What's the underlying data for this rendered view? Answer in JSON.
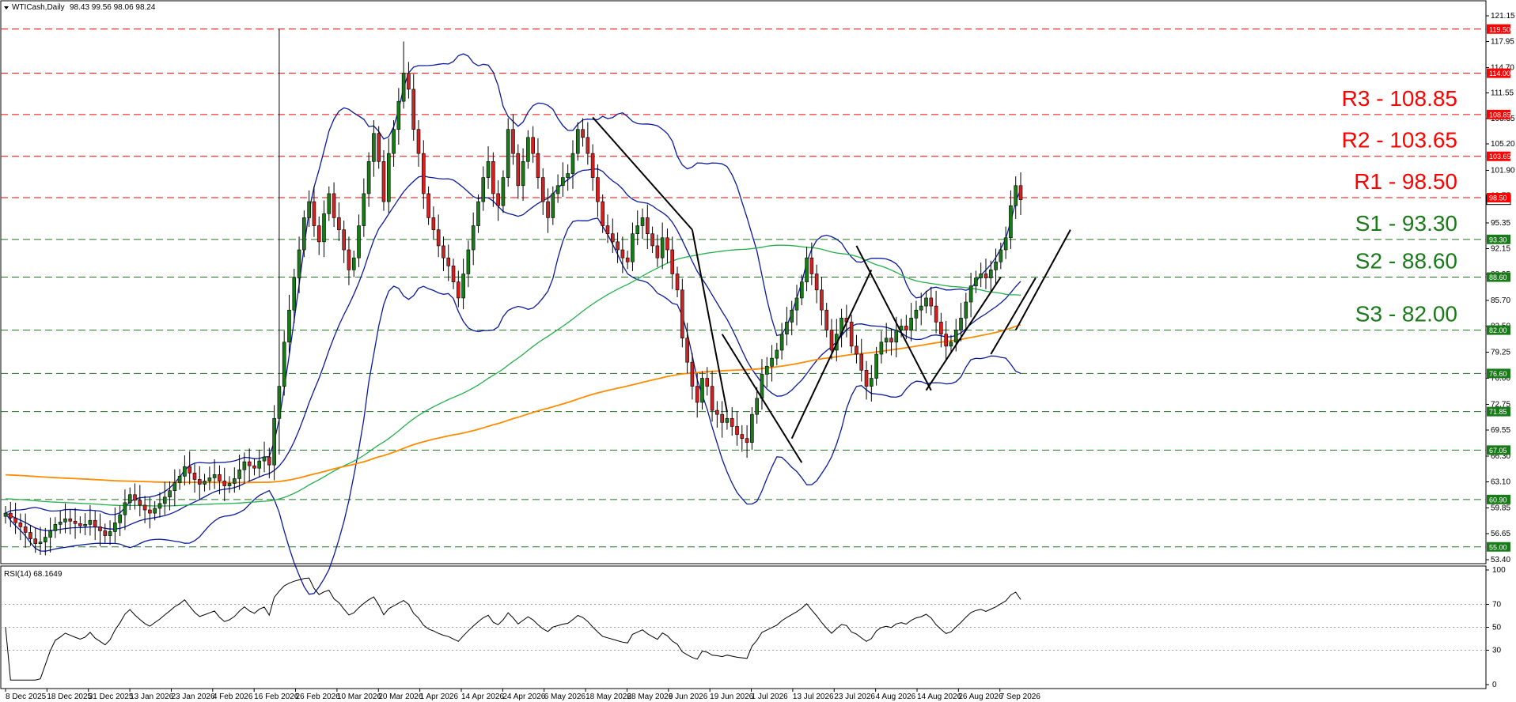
{
  "chart_data": {
    "type": "candlestick",
    "title": "WTICash,Daily",
    "ohlc_readout": "98.43 99.56 98.06 98.24",
    "y_ticks": [
      121.15,
      117.95,
      114.7,
      111.55,
      108.35,
      105.2,
      101.9,
      98.75,
      95.35,
      92.15,
      88.95,
      85.7,
      82.5,
      79.25,
      76.0,
      72.75,
      69.55,
      66.3,
      63.1,
      59.85,
      56.65,
      53.4
    ],
    "x_ticks": [
      "8 Dec 2025",
      "18 Dec 2025",
      "31 Dec 2025",
      "13 Jan 2026",
      "23 Jan 2026",
      "4 Feb 2026",
      "16 Feb 2026",
      "26 Feb 2026",
      "10 Mar 2026",
      "20 Mar 2026",
      "1 Apr 2026",
      "14 Apr 2026",
      "24 Apr 2026",
      "6 May 2026",
      "18 May 2026",
      "28 May 2026",
      "9 Jun 2026",
      "19 Jun 2026",
      "1 Jul 2026",
      "13 Jul 2026",
      "23 Jul 2026",
      "4 Aug 2026",
      "14 Aug 2026",
      "26 Aug 2026",
      "7 Sep 2026"
    ],
    "levels": [
      {
        "value": 119.5,
        "label": "119.50",
        "color": "#ff0000"
      },
      {
        "value": 114.0,
        "label": "114.00",
        "color": "#ff0000"
      },
      {
        "value": 108.85,
        "label": "108.85",
        "color": "#ff0000",
        "name": "R3 - 108.85"
      },
      {
        "value": 103.65,
        "label": "103.65",
        "color": "#ff0000",
        "name": "R2 - 103.65"
      },
      {
        "value": 98.5,
        "label": "98.50",
        "color": "#ff0000",
        "name": "R1 - 98.50"
      },
      {
        "value": 93.3,
        "label": "93.30",
        "color": "#1a7a1a",
        "name": "S1 - 93.30"
      },
      {
        "value": 88.6,
        "label": "88.60",
        "color": "#1a7a1a",
        "name": "S2 - 88.60"
      },
      {
        "value": 82.0,
        "label": "82.00",
        "color": "#1a7a1a",
        "name": "S3 - 82.00"
      },
      {
        "value": 76.6,
        "label": "76.60",
        "color": "#1a7a1a"
      },
      {
        "value": 71.85,
        "label": "71.85",
        "color": "#1a7a1a"
      },
      {
        "value": 67.05,
        "label": "67.05",
        "color": "#1a7a1a"
      },
      {
        "value": 60.9,
        "label": "60.90",
        "color": "#1a7a1a"
      },
      {
        "value": 55.0,
        "label": "55.00",
        "color": "#1a7a1a"
      }
    ],
    "current_price": 98.24,
    "closes": [
      59.2,
      58.6,
      58.0,
      57.5,
      56.8,
      56.0,
      55.4,
      55.6,
      56.2,
      57.0,
      57.8,
      58.1,
      58.5,
      58.2,
      57.9,
      57.6,
      57.8,
      58.3,
      57.5,
      57.0,
      56.4,
      56.9,
      58.0,
      59.0,
      60.5,
      61.5,
      60.8,
      60.2,
      59.6,
      59.2,
      59.8,
      60.4,
      61.2,
      62.0,
      63.0,
      63.8,
      65.0,
      64.2,
      63.4,
      62.8,
      63.2,
      63.6,
      64.0,
      63.2,
      62.6,
      62.9,
      63.5,
      64.6,
      65.6,
      65.1,
      64.8,
      65.7,
      66.2,
      65.2,
      71.0,
      75.0,
      80.5,
      84.5,
      88.5,
      92.0,
      96.0,
      98.0,
      95.0,
      93.0,
      96.5,
      99.0,
      96.0,
      94.5,
      92.0,
      89.5,
      91.0,
      95.0,
      99.0,
      103.0,
      106.5,
      103.0,
      98.0,
      104.0,
      107.0,
      110.5,
      114.0,
      112.0,
      107.0,
      104.0,
      99.0,
      96.0,
      94.5,
      92.5,
      91.0,
      90.0,
      88.0,
      86.0,
      89.0,
      92.0,
      95.0,
      98.0,
      101.0,
      103.0,
      99.0,
      97.5,
      101.0,
      107.0,
      104.0,
      100.0,
      103.0,
      106.0,
      104.0,
      101.0,
      98.0,
      96.0,
      99.0,
      100.0,
      101.0,
      101.5,
      104.0,
      107.0,
      106.0,
      104.0,
      101.0,
      98.0,
      95.0,
      94.0,
      93.0,
      92.0,
      91.0,
      90.5,
      94.0,
      95.0,
      96.0,
      94.0,
      92.5,
      91.0,
      93.5,
      92.0,
      89.0,
      87.0,
      81.0,
      78.0,
      75.0,
      73.0,
      76.0,
      75.0,
      72.0,
      71.5,
      70.5,
      71.0,
      70.0,
      69.0,
      68.5,
      68.0,
      71.5,
      73.5,
      76.5,
      77.5,
      78.5,
      79.5,
      81.5,
      83.0,
      84.5,
      86.0,
      88.0,
      91.0,
      89.0,
      87.0,
      84.5,
      82.0,
      79.5,
      81.5,
      83.5,
      83.0,
      80.0,
      79.0,
      77.0,
      75.0,
      76.0,
      79.0,
      80.5,
      81.0,
      80.5,
      82.0,
      82.5,
      82.0,
      83.5,
      84.5,
      85.0,
      86.0,
      85.0,
      83.0,
      81.5,
      80.0,
      80.5,
      82.0,
      83.5,
      85.5,
      87.5,
      88.5,
      89.0,
      88.5,
      89.5,
      90.5,
      92.0,
      93.5,
      97.5,
      100.0,
      98.24
    ],
    "indicators": [
      {
        "type": "bollinger-bands",
        "color": "#0a1a9e"
      },
      {
        "type": "moving-average",
        "color": "#22b04a"
      },
      {
        "type": "moving-average",
        "color": "#ff8c00"
      }
    ],
    "rsi": {
      "label": "RSI(14) 68.1649",
      "ticks": [
        100,
        70,
        50,
        30,
        0
      ],
      "ylim": [
        0,
        100
      ]
    }
  }
}
